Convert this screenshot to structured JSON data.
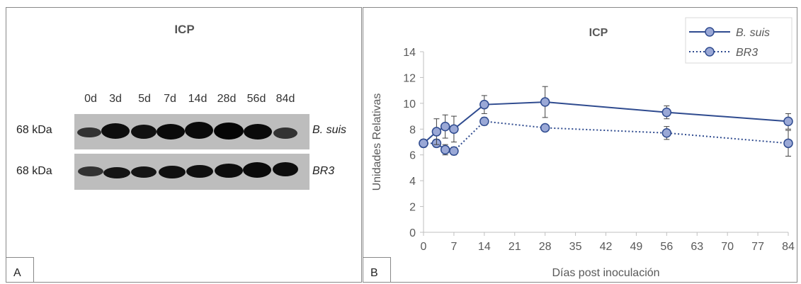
{
  "panel_a": {
    "title": "ICP",
    "letter": "A",
    "lanes": [
      "0d",
      "3d",
      "5d",
      "7d",
      "14d",
      "28d",
      "56d",
      "84d"
    ],
    "rows": [
      {
        "marker": "68 kDa",
        "strain": "B. suis"
      },
      {
        "marker": "68 kDa",
        "strain": "BR3"
      }
    ]
  },
  "panel_b": {
    "letter": "B"
  },
  "chart_data": {
    "type": "line",
    "title": "ICP",
    "xlabel": "Días post inoculación",
    "ylabel": "Unidades Relativas",
    "xlim": [
      0,
      84
    ],
    "ylim": [
      0,
      14
    ],
    "x_ticks": [
      "0",
      "7",
      "14",
      "21",
      "28",
      "35",
      "42",
      "49",
      "56",
      "63",
      "70",
      "77",
      "84"
    ],
    "y_ticks": [
      "0",
      "2",
      "4",
      "6",
      "8",
      "10",
      "12",
      "14"
    ],
    "grid": false,
    "legend_position": "top-right",
    "series": [
      {
        "name": "B. suis",
        "line_style": "solid",
        "color": "#2f4b8f",
        "marker_fill": "#9aa8d6",
        "points": [
          {
            "x": 0,
            "y": 6.9,
            "err": 0.3
          },
          {
            "x": 3,
            "y": 7.8,
            "err": 1.0
          },
          {
            "x": 5,
            "y": 8.2,
            "err": 0.9
          },
          {
            "x": 7,
            "y": 8.0,
            "err": 1.0
          },
          {
            "x": 14,
            "y": 9.9,
            "err": 0.7
          },
          {
            "x": 28,
            "y": 10.1,
            "err": 1.2
          },
          {
            "x": 56,
            "y": 9.3,
            "err": 0.5
          },
          {
            "x": 84,
            "y": 8.6,
            "err": 0.6
          }
        ]
      },
      {
        "name": "BR3",
        "line_style": "dotted",
        "color": "#2f4b8f",
        "marker_fill": "#9aa8d6",
        "points": [
          {
            "x": 0,
            "y": 6.9,
            "err": 0.2
          },
          {
            "x": 3,
            "y": 6.9,
            "err": 0.3
          },
          {
            "x": 5,
            "y": 6.4,
            "err": 0.4
          },
          {
            "x": 7,
            "y": 6.3,
            "err": 0.3
          },
          {
            "x": 14,
            "y": 8.6,
            "err": 0.3
          },
          {
            "x": 28,
            "y": 8.1,
            "err": 0.2
          },
          {
            "x": 56,
            "y": 7.7,
            "err": 0.5
          },
          {
            "x": 84,
            "y": 6.9,
            "err": 1.0
          }
        ]
      }
    ]
  }
}
